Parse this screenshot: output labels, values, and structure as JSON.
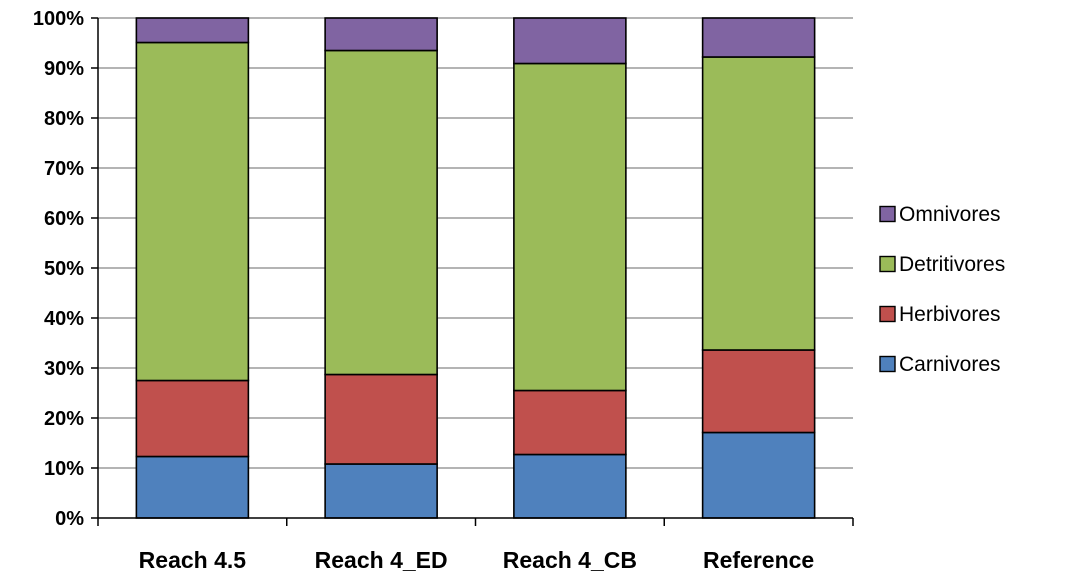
{
  "chart_data": {
    "type": "bar",
    "stacked": true,
    "percent": true,
    "categories": [
      "Reach 4.5",
      "Reach 4_ED",
      "Reach 4_CB",
      "Reference"
    ],
    "series": [
      {
        "name": "Carnivores",
        "color": "#4F81BD",
        "values": [
          12.3,
          10.8,
          12.7,
          17.1
        ]
      },
      {
        "name": "Herbivores",
        "color": "#C0504D",
        "values": [
          15.2,
          17.9,
          12.8,
          16.5
        ]
      },
      {
        "name": "Detritivores",
        "color": "#9BBB59",
        "values": [
          67.6,
          64.8,
          65.4,
          58.6
        ]
      },
      {
        "name": "Omnivores",
        "color": "#8064A2",
        "values": [
          4.9,
          6.5,
          9.1,
          7.8
        ]
      }
    ],
    "ylim": [
      0,
      100
    ],
    "yticks": [
      "0%",
      "10%",
      "20%",
      "30%",
      "40%",
      "50%",
      "60%",
      "70%",
      "80%",
      "90%",
      "100%"
    ],
    "grid": true,
    "legend_position": "right",
    "legend_order": [
      "Omnivores",
      "Detritivores",
      "Herbivores",
      "Carnivores"
    ]
  }
}
